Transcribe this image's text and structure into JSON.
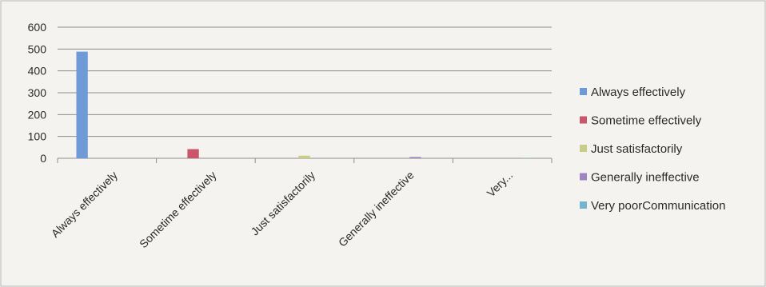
{
  "chart_data": {
    "type": "bar",
    "categories": [
      "Always effectively",
      "Sometime effectively",
      "Just satisfactorily",
      "Generally ineffective",
      "Very..."
    ],
    "series": [
      {
        "name": "Always effectively",
        "color": "#6f9ad8",
        "values": [
          488,
          null,
          null,
          null,
          null
        ]
      },
      {
        "name": "Sometime effectively",
        "color": "#c9566a",
        "values": [
          null,
          42,
          null,
          null,
          null
        ]
      },
      {
        "name": "Just satisfactorily",
        "color": "#c8cc84",
        "values": [
          null,
          null,
          12,
          null,
          null
        ]
      },
      {
        "name": "Generally ineffective",
        "color": "#9d86c0",
        "values": [
          null,
          null,
          null,
          6,
          null
        ]
      },
      {
        "name": "Very poorCommunication",
        "color": "#74b4cf",
        "values": [
          null,
          null,
          null,
          null,
          2
        ]
      }
    ],
    "ylim": [
      0,
      600
    ],
    "yticks": [
      0,
      100,
      200,
      300,
      400,
      500,
      600
    ],
    "grid": true,
    "legend_position": "right",
    "title": "",
    "xlabel": "",
    "ylabel": ""
  }
}
